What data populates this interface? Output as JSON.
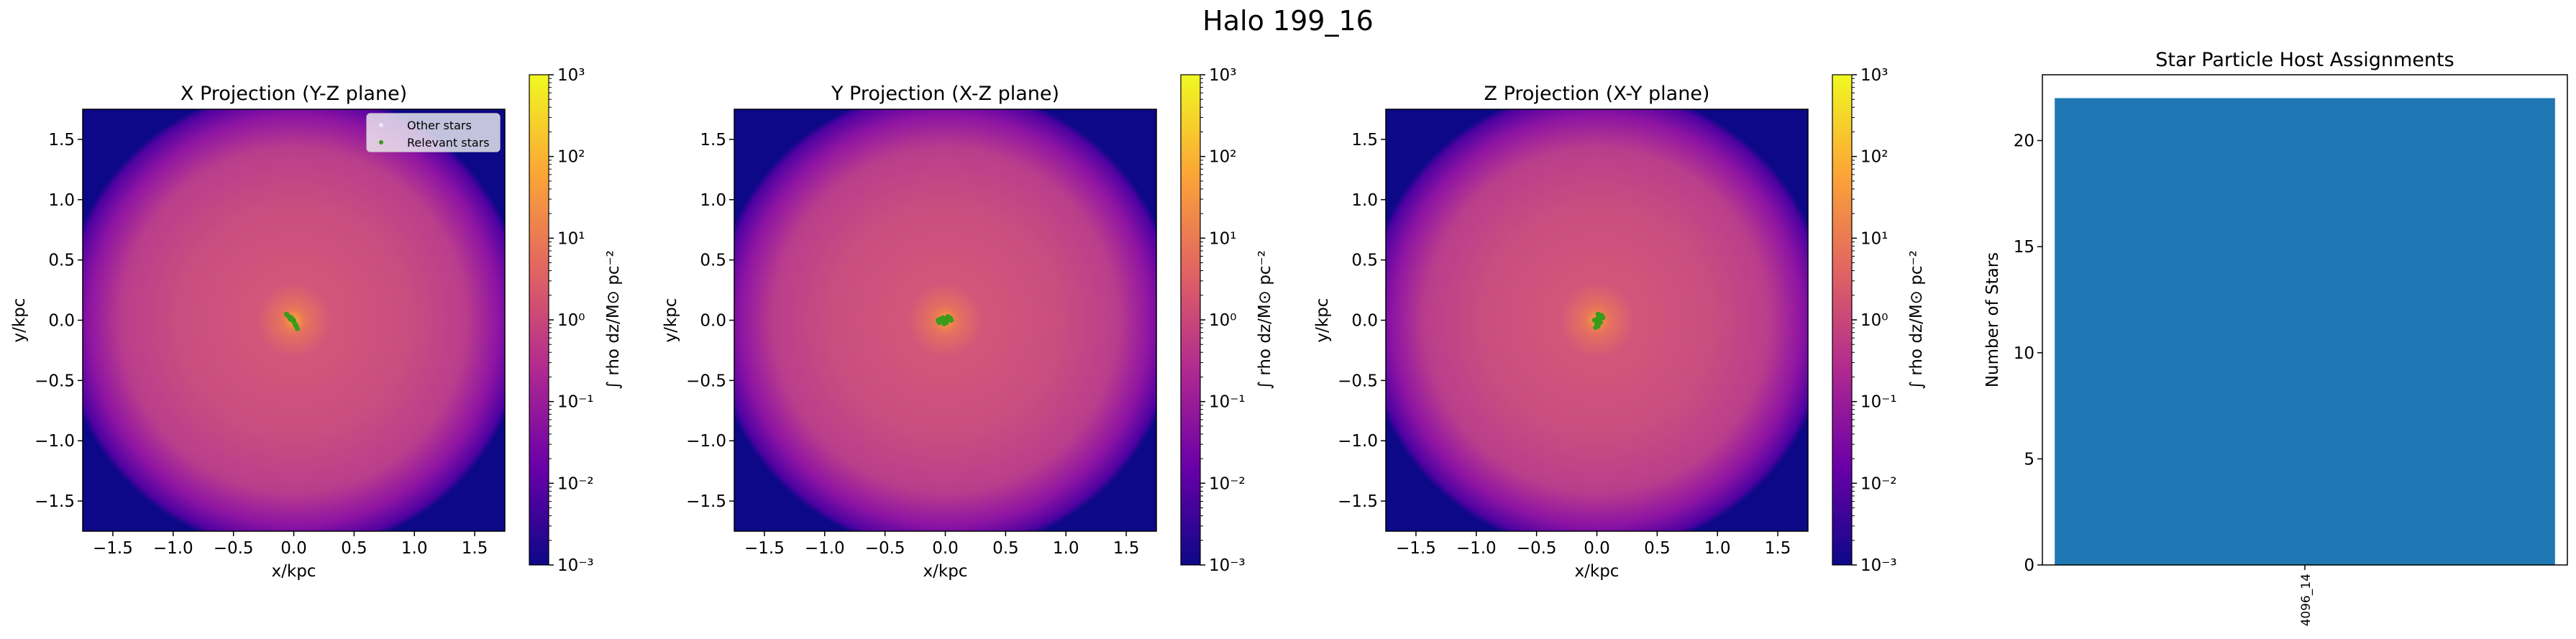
{
  "figure": {
    "title": "Halo 199_16"
  },
  "colors": {
    "cmap_plasma": [
      "#0d0887",
      "#6a00a8",
      "#b12a90",
      "#e16462",
      "#fca636",
      "#f0f921"
    ],
    "star_green": "#3a9a1c",
    "bar_blue": "#1f77b4"
  },
  "chart_data": [
    {
      "type": "heatmap",
      "title": "X Projection (Y-Z plane)",
      "xlabel": "x/kpc",
      "ylabel": "y/kpc",
      "xlim": [
        -1.75,
        1.75
      ],
      "ylim": [
        -1.75,
        1.75
      ],
      "xticks": [
        "−1.5",
        "−1.0",
        "−0.5",
        "0.0",
        "0.5",
        "1.0",
        "1.5"
      ],
      "yticks": [
        "−1.5",
        "−1.0",
        "−0.5",
        "0.0",
        "0.5",
        "1.0",
        "1.5"
      ],
      "colorbar": {
        "label": "∫ rho dz/M⊙ pc⁻²",
        "scale": "log",
        "range": [
          0.001,
          1000
        ],
        "ticks": [
          "10⁻³",
          "10⁻²",
          "10⁻¹",
          "10⁰",
          "10¹",
          "10²",
          "10³"
        ]
      },
      "legend": {
        "placement": "top-right",
        "entries": [
          "Other stars",
          "Relevant stars"
        ]
      },
      "stars": {
        "x": [
          -0.06,
          -0.04,
          -0.02,
          -0.01,
          0.0,
          0.01,
          0.02,
          0.03,
          -0.05,
          -0.03,
          0.0,
          0.015
        ],
        "y": [
          0.05,
          0.03,
          0.02,
          0.0,
          -0.01,
          -0.03,
          -0.05,
          -0.07,
          0.04,
          0.01,
          0.0,
          -0.04
        ]
      }
    },
    {
      "type": "heatmap",
      "title": "Y Projection (X-Z plane)",
      "xlabel": "x/kpc",
      "ylabel": "y/kpc",
      "xlim": [
        -1.75,
        1.75
      ],
      "ylim": [
        -1.75,
        1.75
      ],
      "xticks": [
        "−1.5",
        "−1.0",
        "−0.5",
        "0.0",
        "0.5",
        "1.0",
        "1.5"
      ],
      "yticks": [
        "−1.5",
        "−1.0",
        "−0.5",
        "0.0",
        "0.5",
        "1.0",
        "1.5"
      ],
      "colorbar": {
        "label": "∫ rho dz/M⊙ pc⁻²",
        "scale": "log",
        "range": [
          0.001,
          1000
        ],
        "ticks": [
          "10⁻³",
          "10⁻²",
          "10⁻¹",
          "10⁰",
          "10¹",
          "10²",
          "10³"
        ]
      },
      "stars": {
        "x": [
          -0.06,
          -0.05,
          -0.04,
          -0.03,
          -0.02,
          0.0,
          0.01,
          0.03,
          0.04,
          -0.01,
          0.02,
          0.05
        ],
        "y": [
          0.0,
          -0.02,
          0.01,
          -0.01,
          0.02,
          0.0,
          -0.02,
          0.01,
          0.02,
          -0.03,
          0.03,
          0.0
        ]
      }
    },
    {
      "type": "heatmap",
      "title": "Z Projection (X-Y plane)",
      "xlabel": "x/kpc",
      "ylabel": "y/kpc",
      "xlim": [
        -1.75,
        1.75
      ],
      "ylim": [
        -1.75,
        1.75
      ],
      "xticks": [
        "−1.5",
        "−1.0",
        "−0.5",
        "0.0",
        "0.5",
        "1.0",
        "1.5"
      ],
      "yticks": [
        "−1.5",
        "−1.0",
        "−0.5",
        "0.0",
        "0.5",
        "1.0",
        "1.5"
      ],
      "colorbar": {
        "label": "∫ rho dz/M⊙ pc⁻²",
        "scale": "log",
        "range": [
          0.001,
          1000
        ],
        "ticks": [
          "10⁻³",
          "10⁻²",
          "10⁻¹",
          "10⁰",
          "10¹",
          "10²",
          "10³"
        ]
      },
      "stars": {
        "x": [
          -0.01,
          0.0,
          0.02,
          0.03,
          0.04,
          0.01,
          -0.02,
          0.0,
          0.03,
          0.02,
          0.05,
          0.01
        ],
        "y": [
          -0.06,
          -0.03,
          -0.01,
          0.02,
          0.04,
          0.05,
          0.0,
          0.01,
          -0.02,
          0.03,
          0.02,
          -0.05
        ]
      }
    },
    {
      "type": "bar",
      "title": "Star Particle Host Assignments",
      "xlabel": "",
      "ylabel": "Number of Stars",
      "categories": [
        "4096_14"
      ],
      "values": [
        22
      ],
      "ylim": [
        0,
        23.1
      ],
      "yticks": [
        0,
        5,
        10,
        15,
        20
      ]
    }
  ]
}
